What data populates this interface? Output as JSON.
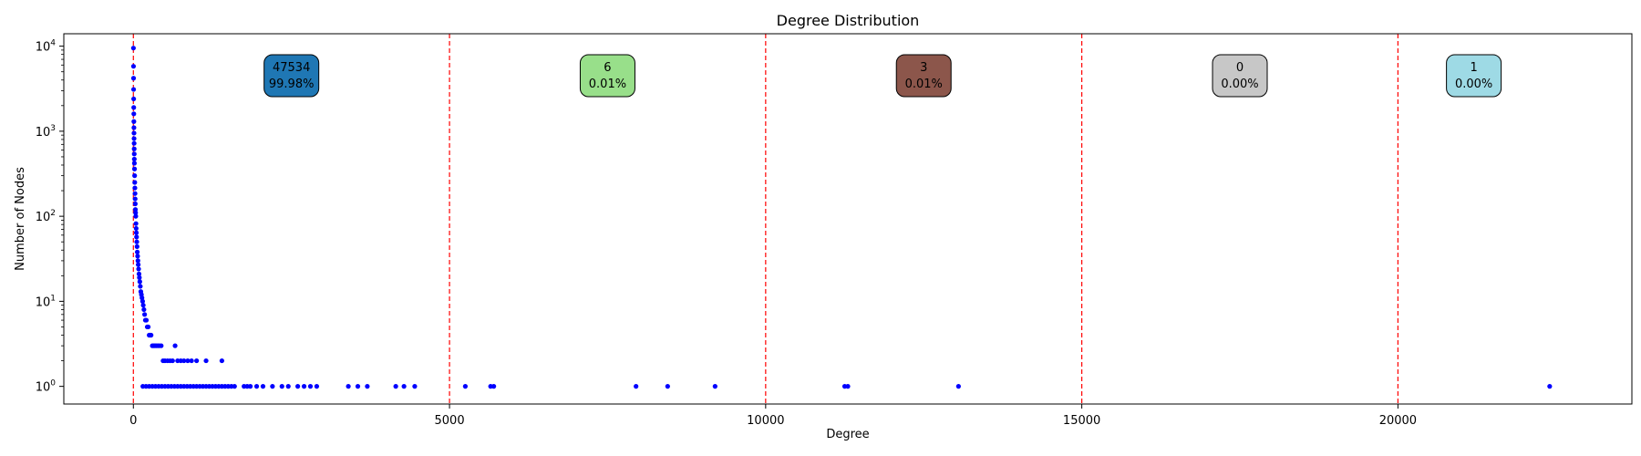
{
  "chart_data": {
    "type": "scatter",
    "title": "Degree Distribution",
    "xlabel": "Degree",
    "ylabel": "Number of Nodes",
    "xlim": [
      -1100,
      23700
    ],
    "ylim": [
      0.62,
      14000
    ],
    "yscale": "log",
    "xticks": [
      0,
      5000,
      10000,
      15000,
      20000
    ],
    "xtick_labels": [
      "0",
      "5000",
      "10000",
      "15000",
      "20000"
    ],
    "yticks": [
      1,
      10,
      100,
      1000,
      10000
    ],
    "ytick_exponents": [
      "0",
      "1",
      "2",
      "3",
      "4"
    ],
    "ytick_base": "10",
    "grid": false,
    "marker_color": "#0000ff",
    "divider_color": "#ff0000",
    "dividers": [
      0,
      5000,
      10000,
      15000,
      20000
    ],
    "bins": [
      {
        "count": "47534",
        "percent": "99.98%",
        "center": 2500,
        "color": "#1f77b4"
      },
      {
        "count": "6",
        "percent": "0.01%",
        "center": 7500,
        "color": "#98df8a"
      },
      {
        "count": "3",
        "percent": "0.01%",
        "center": 12500,
        "color": "#8c564b"
      },
      {
        "count": "0",
        "percent": "0.00%",
        "center": 17500,
        "color": "#c7c7c7"
      },
      {
        "count": "1",
        "percent": "0.00%",
        "center": 21200,
        "color": "#9edae5"
      }
    ],
    "points": [
      [
        1,
        9500
      ],
      [
        2,
        5800
      ],
      [
        3,
        4200
      ],
      [
        4,
        3100
      ],
      [
        5,
        2400
      ],
      [
        6,
        1900
      ],
      [
        7,
        1600
      ],
      [
        8,
        1300
      ],
      [
        9,
        1100
      ],
      [
        10,
        950
      ],
      [
        11,
        820
      ],
      [
        12,
        720
      ],
      [
        13,
        620
      ],
      [
        14,
        540
      ],
      [
        15,
        470
      ],
      [
        16,
        420
      ],
      [
        18,
        360
      ],
      [
        20,
        300
      ],
      [
        22,
        250
      ],
      [
        24,
        215
      ],
      [
        26,
        185
      ],
      [
        28,
        160
      ],
      [
        30,
        140
      ],
      [
        32,
        120
      ],
      [
        35,
        110
      ],
      [
        38,
        100
      ],
      [
        41,
        82
      ],
      [
        44,
        72
      ],
      [
        47,
        64
      ],
      [
        50,
        57
      ],
      [
        54,
        50
      ],
      [
        58,
        44
      ],
      [
        62,
        38
      ],
      [
        67,
        34
      ],
      [
        72,
        30
      ],
      [
        77,
        27
      ],
      [
        83,
        24
      ],
      [
        89,
        21
      ],
      [
        95,
        19
      ],
      [
        102,
        17
      ],
      [
        110,
        15
      ],
      [
        118,
        13
      ],
      [
        127,
        12
      ],
      [
        136,
        11
      ],
      [
        146,
        10
      ],
      [
        156,
        9
      ],
      [
        167,
        8
      ],
      [
        178,
        7
      ],
      [
        190,
        6
      ],
      [
        205,
        6
      ],
      [
        220,
        5
      ],
      [
        235,
        5
      ],
      [
        250,
        4
      ],
      [
        265,
        4
      ],
      [
        280,
        4
      ],
      [
        300,
        3
      ],
      [
        320,
        3
      ],
      [
        340,
        3
      ],
      [
        360,
        3
      ],
      [
        385,
        3
      ],
      [
        410,
        3
      ],
      [
        440,
        3
      ],
      [
        470,
        2
      ],
      [
        500,
        2
      ],
      [
        540,
        2
      ],
      [
        580,
        2
      ],
      [
        620,
        2
      ],
      [
        660,
        3
      ],
      [
        700,
        2
      ],
      [
        750,
        2
      ],
      [
        800,
        2
      ],
      [
        860,
        2
      ],
      [
        920,
        2
      ],
      [
        1000,
        2
      ],
      [
        1150,
        2
      ],
      [
        1400,
        2
      ],
      [
        150,
        1
      ],
      [
        200,
        1
      ],
      [
        250,
        1
      ],
      [
        300,
        1
      ],
      [
        350,
        1
      ],
      [
        400,
        1
      ],
      [
        450,
        1
      ],
      [
        500,
        1
      ],
      [
        550,
        1
      ],
      [
        600,
        1
      ],
      [
        650,
        1
      ],
      [
        700,
        1
      ],
      [
        750,
        1
      ],
      [
        800,
        1
      ],
      [
        850,
        1
      ],
      [
        900,
        1
      ],
      [
        950,
        1
      ],
      [
        1000,
        1
      ],
      [
        1050,
        1
      ],
      [
        1100,
        1
      ],
      [
        1150,
        1
      ],
      [
        1200,
        1
      ],
      [
        1250,
        1
      ],
      [
        1300,
        1
      ],
      [
        1350,
        1
      ],
      [
        1400,
        1
      ],
      [
        1450,
        1
      ],
      [
        1500,
        1
      ],
      [
        1550,
        1
      ],
      [
        1600,
        1
      ],
      [
        1750,
        1
      ],
      [
        1800,
        1
      ],
      [
        1850,
        1
      ],
      [
        1950,
        1
      ],
      [
        2050,
        1
      ],
      [
        2200,
        1
      ],
      [
        2350,
        1
      ],
      [
        2450,
        1
      ],
      [
        2600,
        1
      ],
      [
        2700,
        1
      ],
      [
        2800,
        1
      ],
      [
        2900,
        1
      ],
      [
        3400,
        1
      ],
      [
        3550,
        1
      ],
      [
        3700,
        1
      ],
      [
        4150,
        1
      ],
      [
        4280,
        1
      ],
      [
        4450,
        1
      ],
      [
        5250,
        1
      ],
      [
        5650,
        1
      ],
      [
        5700,
        1
      ],
      [
        7950,
        1
      ],
      [
        8450,
        1
      ],
      [
        9200,
        1
      ],
      [
        11250,
        1
      ],
      [
        11300,
        1
      ],
      [
        13050,
        1
      ],
      [
        22400,
        1
      ]
    ]
  }
}
